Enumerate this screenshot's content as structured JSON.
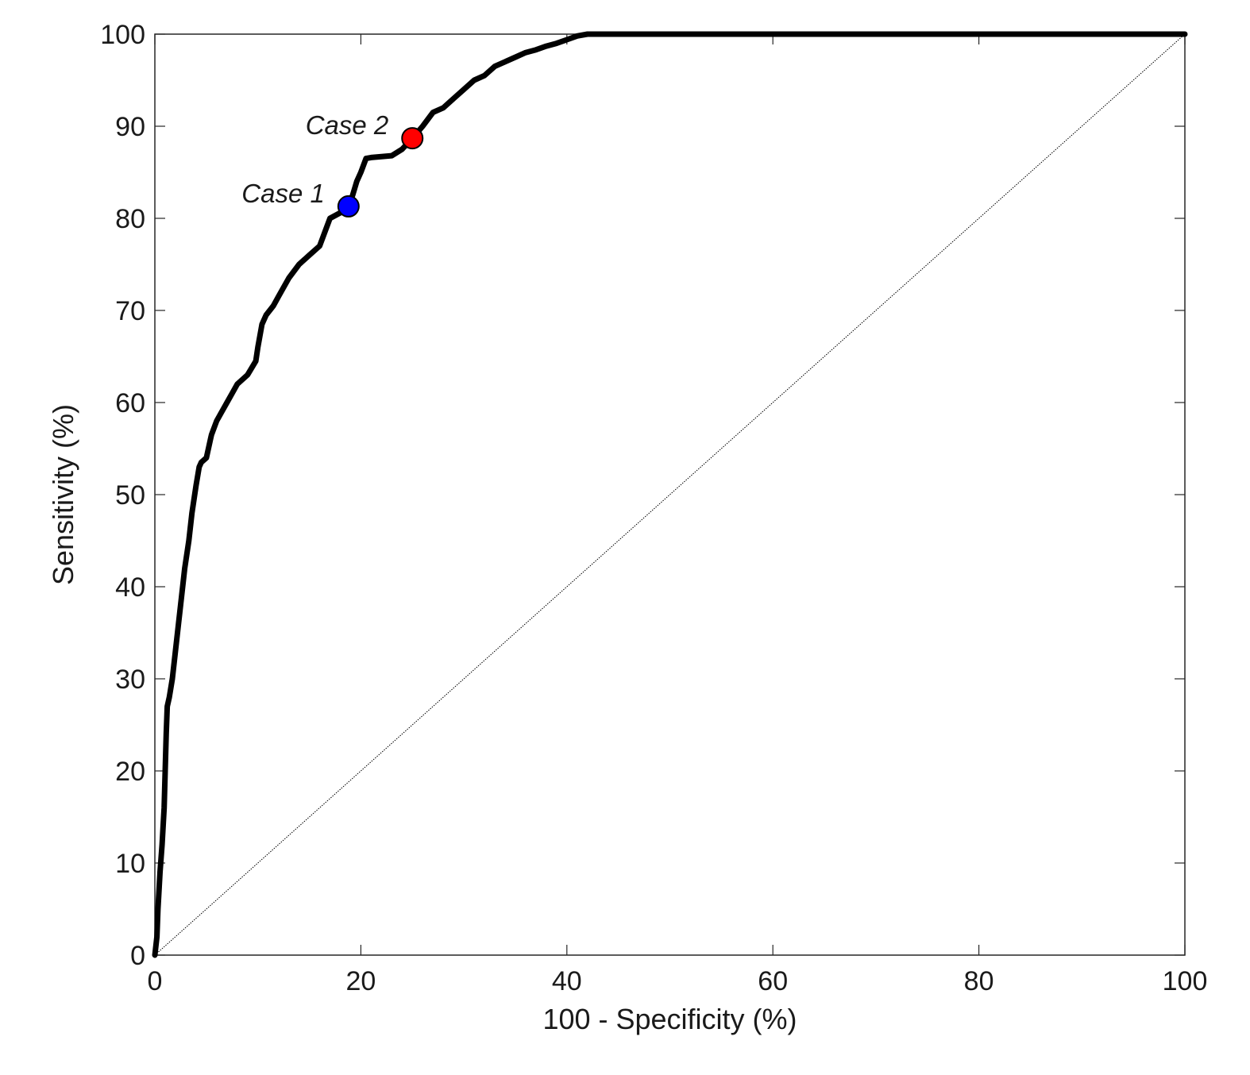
{
  "chart_data": {
    "type": "line",
    "xlabel": "100 - Specificity (%)",
    "ylabel": "Sensitivity (%)",
    "xlim": [
      0,
      100
    ],
    "ylim": [
      0,
      100
    ],
    "xticks": [
      "0",
      "20",
      "40",
      "60",
      "80",
      "100"
    ],
    "yticks": [
      "0",
      "10",
      "20",
      "30",
      "40",
      "50",
      "60",
      "70",
      "80",
      "90",
      "100"
    ],
    "grid": false,
    "colors": {
      "roc": "#000000",
      "case1": "#0000ff",
      "case2": "#ff0000",
      "diagonal": "#000000"
    },
    "series": [
      {
        "x": [
          0,
          0.2,
          0.3,
          0.5,
          0.7,
          0.9,
          1.0,
          1.1,
          1.2,
          1.4,
          1.7,
          2.0,
          2.3,
          2.6,
          2.9,
          3.3,
          3.6,
          4.0,
          4.3,
          4.5,
          5.0,
          5.4,
          5.5,
          6.0,
          6.5,
          7.0,
          7.5,
          8.0,
          9.0,
          9.8,
          10.0,
          10.4,
          10.8,
          11.5,
          12.0,
          13.0,
          14.0,
          15.0,
          16.0,
          16.5,
          17.0,
          17.5,
          18.0,
          18.5,
          18.8,
          19.2,
          19.6,
          20.0,
          20.5,
          21.0,
          23.0,
          24.0,
          25.0,
          26.0,
          27.0,
          28.0,
          29.0,
          30.0,
          31.0,
          32.0,
          33.0,
          34.0,
          35.0,
          36.0,
          37.0,
          38.0,
          39.0,
          40.0,
          41.0,
          42.0,
          50.0,
          100.0
        ],
        "y": [
          0,
          2,
          5,
          9,
          12,
          16,
          20,
          24,
          27,
          28,
          30,
          33,
          36,
          39,
          42,
          45,
          48,
          51,
          53,
          53.5,
          54,
          56,
          56.5,
          58,
          59,
          60,
          61,
          62,
          63,
          64.5,
          66,
          68.5,
          69.5,
          70.5,
          71.5,
          73.5,
          75,
          76,
          77,
          78.5,
          80,
          80.3,
          80.6,
          81.0,
          81.3,
          82.5,
          84,
          85,
          86.5,
          86.6,
          86.8,
          87.5,
          88.7,
          90,
          91.5,
          92,
          93,
          94,
          95,
          95.5,
          96.5,
          97,
          97.5,
          98,
          98.3,
          98.7,
          99,
          99.4,
          99.8,
          100,
          100,
          100
        ]
      }
    ],
    "diagonal": {
      "x": [
        0,
        100
      ],
      "y": [
        0,
        100
      ]
    },
    "points": [
      {
        "label": "Case 1",
        "x": 18.8,
        "y": 81.3
      },
      {
        "label": "Case 2",
        "x": 25.0,
        "y": 88.7
      }
    ]
  }
}
